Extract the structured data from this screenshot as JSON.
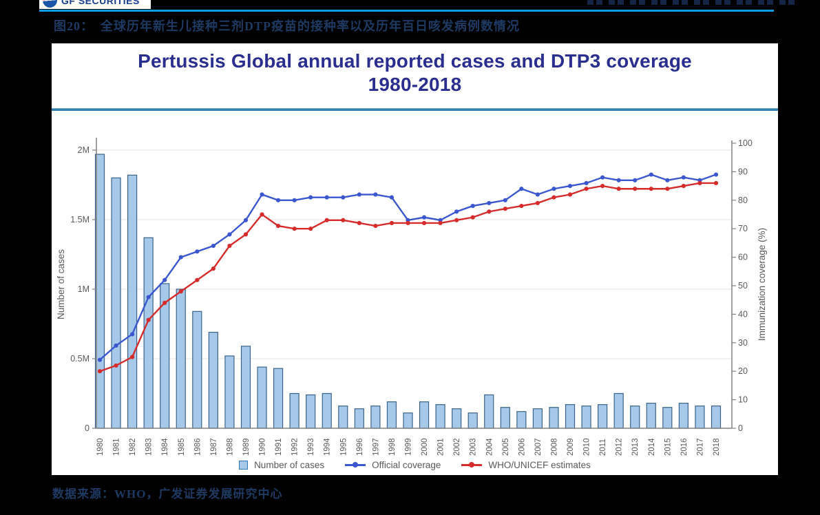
{
  "page": {
    "logo_text": "GF SECURITIES",
    "figure_label": "图20：",
    "figure_title": "全球历年新生儿接种三剂DTP疫苗的接种率以及历年百日咳发病例数情况",
    "source_note": "数据来源：WHO，广发证券发展研究中心",
    "accent_rule_color": "#0D9BE4",
    "panel_rule_color": "#2E7FAE",
    "caption_color": "#1E3A63"
  },
  "chart_data": {
    "type": "bar",
    "combo": "bars on left axis + two lines on right axis",
    "title_line1": "Pertussis Global annual reported cases and DTP3 coverage",
    "title_line2": "1980-2018",
    "ylabel_left": "Number of cases",
    "ylabel_right": "Immunization coverage (%)",
    "ylim_left_millions": [
      0,
      2
    ],
    "ylim_right_percent": [
      0,
      100
    ],
    "grid": "horizontal, at left-axis ticks",
    "legend_position": "bottom center",
    "left_ticks": [
      {
        "label": "0",
        "value_millions": 0
      },
      {
        "label": "0.5M",
        "value_millions": 0.5
      },
      {
        "label": "1M",
        "value_millions": 1
      },
      {
        "label": "1.5M",
        "value_millions": 1.5
      },
      {
        "label": "2M",
        "value_millions": 2
      }
    ],
    "right_ticks": [
      0,
      10,
      20,
      30,
      40,
      50,
      60,
      70,
      80,
      90,
      100
    ],
    "categories": [
      1980,
      1981,
      1982,
      1983,
      1984,
      1985,
      1986,
      1987,
      1988,
      1989,
      1990,
      1991,
      1992,
      1993,
      1994,
      1995,
      1996,
      1997,
      1998,
      1999,
      2000,
      2001,
      2002,
      2003,
      2004,
      2005,
      2006,
      2007,
      2008,
      2009,
      2010,
      2011,
      2012,
      2013,
      2014,
      2015,
      2016,
      2017,
      2018
    ],
    "series": [
      {
        "name": "Number of cases",
        "kind": "bar",
        "axis": "left",
        "unit": "million cases",
        "fill": "#A6C9E9",
        "stroke": "#3A628A",
        "values_millions": [
          1.97,
          1.8,
          1.82,
          1.37,
          1.04,
          1.0,
          0.84,
          0.69,
          0.52,
          0.59,
          0.44,
          0.43,
          0.25,
          0.24,
          0.25,
          0.16,
          0.14,
          0.16,
          0.19,
          0.11,
          0.19,
          0.17,
          0.14,
          0.11,
          0.24,
          0.15,
          0.12,
          0.14,
          0.15,
          0.17,
          0.16,
          0.17,
          0.25,
          0.16,
          0.18,
          0.15,
          0.18,
          0.16,
          0.16
        ]
      },
      {
        "name": "Official coverage",
        "kind": "line",
        "axis": "right",
        "unit": "%",
        "color": "#3A57D0",
        "values_percent": [
          24,
          29,
          33,
          46,
          52,
          60,
          62,
          64,
          68,
          73,
          82,
          80,
          80,
          81,
          81,
          81,
          82,
          82,
          81,
          73,
          74,
          73,
          76,
          78,
          79,
          80,
          84,
          82,
          84,
          85,
          86,
          88,
          87,
          87,
          89,
          87,
          88,
          87,
          89
        ]
      },
      {
        "name": "WHO/UNICEF estimates",
        "kind": "line",
        "axis": "right",
        "unit": "%",
        "color": "#D62B2B",
        "values_percent": [
          20,
          22,
          25,
          38,
          44,
          48,
          52,
          56,
          64,
          68,
          75,
          71,
          70,
          70,
          73,
          73,
          72,
          71,
          72,
          72,
          72,
          72,
          73,
          74,
          76,
          77,
          78,
          79,
          81,
          82,
          84,
          85,
          84,
          84,
          84,
          84,
          85,
          86,
          86
        ]
      }
    ],
    "style": {
      "grid_color": "#F1ECEC",
      "axis_color": "#808080",
      "tick_text_color": "#595959",
      "title_color": "#2A2F8F"
    }
  }
}
